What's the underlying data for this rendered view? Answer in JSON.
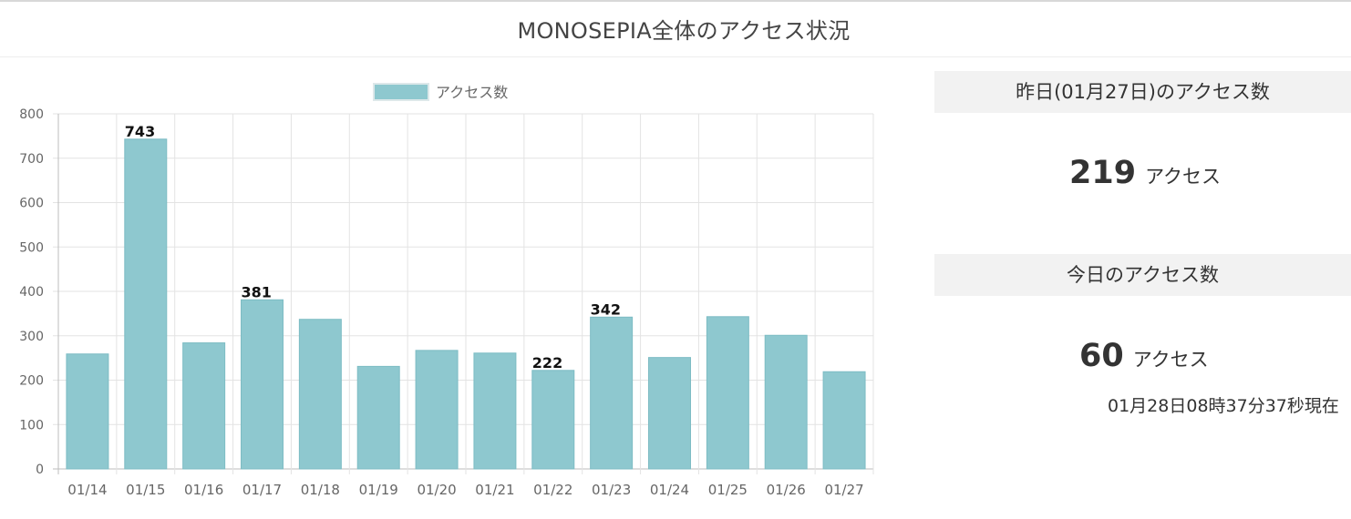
{
  "page": {
    "title": "MONOSEPIA全体のアクセス状況"
  },
  "chart_data": {
    "type": "bar",
    "legend": "アクセス数",
    "legend_position": "top",
    "categories": [
      "01/14",
      "01/15",
      "01/16",
      "01/17",
      "01/18",
      "01/19",
      "01/20",
      "01/21",
      "01/22",
      "01/23",
      "01/24",
      "01/25",
      "01/26",
      "01/27"
    ],
    "series": [
      {
        "name": "アクセス数",
        "values": [
          259,
          743,
          284,
          381,
          337,
          231,
          267,
          261,
          222,
          342,
          251,
          343,
          301,
          219
        ]
      }
    ],
    "data_labels": [
      {
        "index": 1,
        "text": "743"
      },
      {
        "index": 3,
        "text": "381"
      },
      {
        "index": 8,
        "text": "222"
      },
      {
        "index": 9,
        "text": "342"
      }
    ],
    "y_ticks": [
      "0",
      "100",
      "200",
      "300",
      "400",
      "500",
      "600",
      "700",
      "800"
    ],
    "ylim": [
      0,
      800
    ],
    "grid": true,
    "colors": {
      "bar": "#8ec8cf",
      "bar_border": "#7dbcc4"
    }
  },
  "yesterday": {
    "heading": "昨日(01月27日)のアクセス数",
    "count": "219",
    "unit": "アクセス"
  },
  "today": {
    "heading": "今日のアクセス数",
    "count": "60",
    "unit": "アクセス",
    "timestamp": "01月28日08時37分37秒現在"
  }
}
